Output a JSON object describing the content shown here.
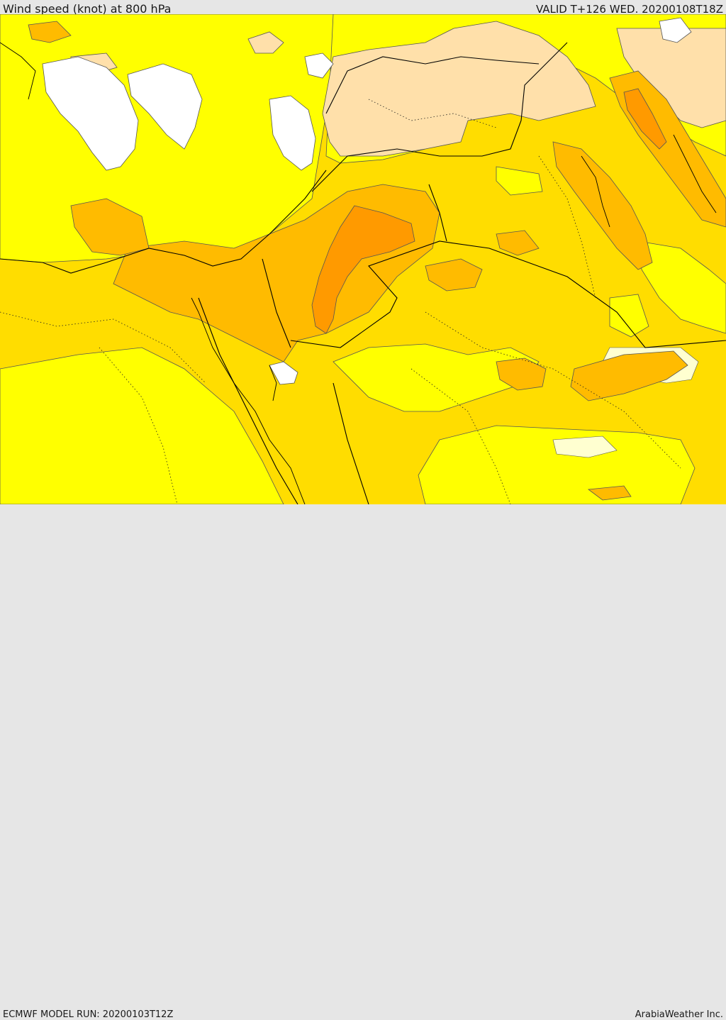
{
  "header": {
    "title": "Wind speed (knot) at 800 hPa",
    "valid": "VALID T+126 WED. 20200108T18Z"
  },
  "footer": {
    "model_run": "ECMWF MODEL RUN: 20200103T12Z",
    "credit": "ArabiaWeather Inc."
  },
  "colors": {
    "calm": "#ffffff",
    "light": "#ffffd0",
    "yellow": "#ffff00",
    "gold": "#ffdd00",
    "amber": "#ffbb00",
    "orange": "#ff9a00",
    "peach": "#ffe0aa",
    "border": "#000000",
    "contour": "#555555"
  }
}
